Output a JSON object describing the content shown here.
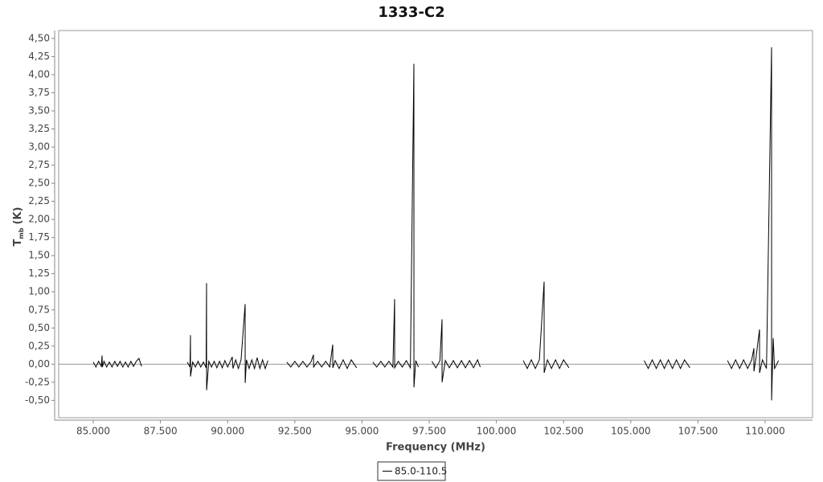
{
  "chart_data": {
    "type": "line",
    "title": "1333-C2",
    "xlabel": "Frequency (MHz)",
    "ylabel_parts": [
      "T",
      "mb",
      "(K)"
    ],
    "xlim": [
      83714,
      111764
    ],
    "ylim": [
      -0.74,
      4.61
    ],
    "xticks": [
      {
        "value": 85000,
        "label": "85.000"
      },
      {
        "value": 87500,
        "label": "87.500"
      },
      {
        "value": 90000,
        "label": "90.000"
      },
      {
        "value": 92500,
        "label": "92.500"
      },
      {
        "value": 95000,
        "label": "95.000"
      },
      {
        "value": 97500,
        "label": "97.500"
      },
      {
        "value": 100000,
        "label": "100.000"
      },
      {
        "value": 102500,
        "label": "102.500"
      },
      {
        "value": 105000,
        "label": "105.000"
      },
      {
        "value": 107500,
        "label": "107.500"
      },
      {
        "value": 110000,
        "label": "110.000"
      }
    ],
    "yticks": [
      {
        "value": -0.5,
        "label": "-0,50"
      },
      {
        "value": -0.25,
        "label": "-0,25"
      },
      {
        "value": 0,
        "label": "0,00"
      },
      {
        "value": 0.25,
        "label": "0,25"
      },
      {
        "value": 0.5,
        "label": "0,50"
      },
      {
        "value": 0.75,
        "label": "0,75"
      },
      {
        "value": 1,
        "label": "1,00"
      },
      {
        "value": 1.25,
        "label": "1,25"
      },
      {
        "value": 1.5,
        "label": "1,50"
      },
      {
        "value": 1.75,
        "label": "1,75"
      },
      {
        "value": 2,
        "label": "2,00"
      },
      {
        "value": 2.25,
        "label": "2,25"
      },
      {
        "value": 2.5,
        "label": "2,50"
      },
      {
        "value": 2.75,
        "label": "2,75"
      },
      {
        "value": 3,
        "label": "3,00"
      },
      {
        "value": 3.25,
        "label": "3,25"
      },
      {
        "value": 3.5,
        "label": "3,50"
      },
      {
        "value": 3.75,
        "label": "3,75"
      },
      {
        "value": 4,
        "label": "4,00"
      },
      {
        "value": 4.25,
        "label": "4,25"
      },
      {
        "value": 4.5,
        "label": "4,50"
      }
    ],
    "grid": false,
    "legend": "bottom",
    "series": [
      {
        "name": "85.0-110.5",
        "color": "#000000",
        "x": [
          85000,
          85100,
          85200,
          85300,
          85329,
          85340,
          85400,
          85500,
          85600,
          85700,
          85800,
          85900,
          86000,
          86100,
          86200,
          86300,
          86400,
          86500,
          86600,
          86700,
          86800,
          87650,
          88500,
          88600,
          88618,
          88620,
          88700,
          88800,
          88900,
          89000,
          89100,
          89200,
          89216,
          89218,
          89300,
          89400,
          89500,
          89600,
          89700,
          89800,
          89900,
          90000,
          90173,
          90200,
          90300,
          90400,
          90500,
          90652,
          90654,
          90700,
          90800,
          90900,
          91000,
          91100,
          91200,
          91300,
          91400,
          91500,
          91850,
          92200,
          92350,
          92500,
          92650,
          92800,
          92950,
          93100,
          93194,
          93200,
          93350,
          93500,
          93650,
          93800,
          93850,
          93911,
          93915,
          94000,
          94150,
          94300,
          94450,
          94600,
          94800,
          95100,
          95400,
          95550,
          95700,
          95850,
          96000,
          96150,
          96214,
          96216,
          96350,
          96500,
          96650,
          96800,
          96931,
          96933,
          97000,
          97100,
          97350,
          97600,
          97750,
          97900,
          97978,
          97980,
          98100,
          98250,
          98400,
          98550,
          98700,
          98850,
          99000,
          99150,
          99300,
          99400,
          100200,
          101000,
          101150,
          101300,
          101450,
          101600,
          101776,
          101778,
          101900,
          102050,
          102200,
          102350,
          102500,
          102700,
          104100,
          105500,
          105650,
          105800,
          105950,
          106100,
          106250,
          106400,
          106550,
          106700,
          106850,
          107000,
          107200,
          107900,
          108600,
          108750,
          108900,
          109050,
          109200,
          109350,
          109500,
          109581,
          109583,
          109650,
          109791,
          109793,
          109900,
          110050,
          110239,
          110241,
          110300,
          110350,
          110500
        ],
        "values": [
          0.03,
          -0.04,
          0.04,
          -0.03,
          0.12,
          -0.04,
          0.04,
          -0.04,
          0.03,
          -0.04,
          0.04,
          -0.03,
          0.04,
          -0.04,
          0.03,
          -0.04,
          0.04,
          -0.03,
          0.04,
          0.08,
          -0.03,
          null,
          0.03,
          -0.04,
          0.4,
          -0.17,
          0.03,
          -0.04,
          0.04,
          -0.04,
          0.03,
          -0.05,
          1.12,
          -0.36,
          0.04,
          -0.04,
          0.04,
          -0.05,
          0.04,
          -0.05,
          0.05,
          -0.04,
          0.1,
          -0.06,
          0.06,
          -0.06,
          0.06,
          0.83,
          -0.26,
          0.06,
          -0.06,
          0.06,
          -0.06,
          0.09,
          -0.06,
          0.06,
          -0.06,
          0.05,
          null,
          0.03,
          -0.04,
          0.04,
          -0.04,
          0.04,
          -0.04,
          0.03,
          0.13,
          -0.04,
          0.04,
          -0.04,
          0.04,
          -0.04,
          0.1,
          0.27,
          -0.05,
          0.05,
          -0.06,
          0.06,
          -0.06,
          0.06,
          -0.05,
          null,
          0.03,
          -0.04,
          0.04,
          -0.04,
          0.04,
          -0.04,
          0.9,
          -0.05,
          0.04,
          -0.04,
          0.05,
          -0.05,
          4.15,
          -0.32,
          0.05,
          -0.04,
          null,
          0.04,
          -0.05,
          0.05,
          0.62,
          -0.25,
          0.05,
          -0.05,
          0.05,
          -0.05,
          0.05,
          -0.05,
          0.05,
          -0.05,
          0.06,
          -0.04,
          null,
          0.05,
          -0.06,
          0.06,
          -0.06,
          0.06,
          1.14,
          -0.12,
          0.06,
          -0.06,
          0.06,
          -0.06,
          0.06,
          -0.05,
          null,
          0.05,
          -0.06,
          0.06,
          -0.06,
          0.06,
          -0.06,
          0.06,
          -0.06,
          0.06,
          -0.06,
          0.06,
          -0.05,
          null,
          0.05,
          -0.06,
          0.06,
          -0.06,
          0.06,
          -0.06,
          0.06,
          0.22,
          -0.1,
          0.06,
          0.48,
          -0.12,
          0.06,
          -0.06,
          4.38,
          -0.5,
          0.36,
          -0.06,
          0.05
        ]
      }
    ]
  }
}
